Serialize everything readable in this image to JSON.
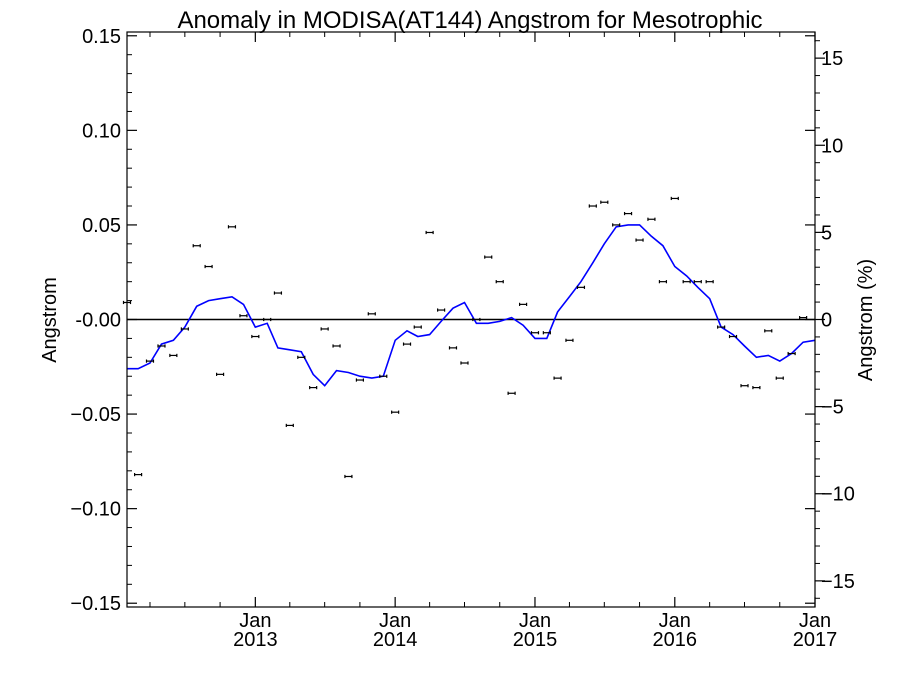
{
  "chart_data": {
    "type": "scatter",
    "title": "Anomaly in MODISA(AT144) Angstrom for Mesotrophic",
    "ylabel": "Angstrom",
    "y2label": "Angstrom (%)",
    "xlim": [
      "2012-02-01",
      "2017-01-01"
    ],
    "ylim": [
      -0.152,
      0.152
    ],
    "y2lim": [
      -16.5,
      16.5
    ],
    "yticks": [
      -0.15,
      -0.1,
      -0.05,
      0.0,
      0.05,
      0.1,
      0.15
    ],
    "ytick_labels": [
      "−0.15",
      "−0.10",
      "−0.05",
      "-0.00",
      "0.05",
      "0.10",
      "0.15"
    ],
    "y2ticks": [
      -15,
      -10,
      -5,
      0,
      5,
      10,
      15
    ],
    "y2tick_labels": [
      "−15",
      "−10",
      "−5",
      "0",
      "5",
      "10",
      "15"
    ],
    "xticks": [
      {
        "date": "2013-01-01",
        "month": "Jan",
        "year": "2013"
      },
      {
        "date": "2014-01-01",
        "month": "Jan",
        "year": "2014"
      },
      {
        "date": "2015-01-01",
        "month": "Jan",
        "year": "2015"
      },
      {
        "date": "2016-01-01",
        "month": "Jan",
        "year": "2016"
      },
      {
        "date": "2017-01-01",
        "month": "Jan",
        "year": "2017"
      }
    ],
    "zero_line": 0,
    "colors": {
      "points": "#000000",
      "running_mean": "#0000ff",
      "zero_line": "#000000"
    },
    "series": [
      {
        "points": [
          [
            "2012-02-01",
            0.009
          ],
          [
            "2012-03-01",
            -0.082
          ],
          [
            "2012-04-01",
            -0.022
          ],
          [
            "2012-05-01",
            -0.014
          ],
          [
            "2012-06-01",
            -0.019
          ],
          [
            "2012-07-01",
            -0.005
          ],
          [
            "2012-08-01",
            0.039
          ],
          [
            "2012-09-01",
            0.028
          ],
          [
            "2012-10-01",
            -0.029
          ],
          [
            "2012-11-01",
            0.049
          ],
          [
            "2012-12-01",
            0.002
          ],
          [
            "2013-01-01",
            -0.009
          ],
          [
            "2013-02-01",
            -0.0
          ],
          [
            "2013-03-01",
            0.014
          ],
          [
            "2013-04-01",
            -0.056
          ],
          [
            "2013-05-01",
            -0.02
          ],
          [
            "2013-06-01",
            -0.036
          ],
          [
            "2013-07-01",
            -0.005
          ],
          [
            "2013-08-01",
            -0.014
          ],
          [
            "2013-09-01",
            -0.083
          ],
          [
            "2013-10-01",
            -0.032
          ],
          [
            "2013-11-01",
            0.003
          ],
          [
            "2013-12-01",
            -0.03
          ],
          [
            "2014-01-01",
            -0.049
          ],
          [
            "2014-02-01",
            -0.013
          ],
          [
            "2014-03-01",
            -0.004
          ],
          [
            "2014-04-01",
            0.046
          ],
          [
            "2014-05-01",
            0.005
          ],
          [
            "2014-06-01",
            -0.015
          ],
          [
            "2014-07-01",
            -0.023
          ],
          [
            "2014-08-01",
            -0.0
          ],
          [
            "2014-09-01",
            0.033
          ],
          [
            "2014-10-01",
            0.02
          ],
          [
            "2014-11-01",
            -0.039
          ],
          [
            "2014-12-01",
            0.008
          ],
          [
            "2015-01-01",
            -0.007
          ],
          [
            "2015-02-01",
            -0.007
          ],
          [
            "2015-03-01",
            -0.031
          ],
          [
            "2015-04-01",
            -0.011
          ],
          [
            "2015-05-01",
            0.017
          ],
          [
            "2015-06-01",
            0.06
          ],
          [
            "2015-07-01",
            0.062
          ],
          [
            "2015-08-01",
            0.05
          ],
          [
            "2015-09-01",
            0.056
          ],
          [
            "2015-10-01",
            0.042
          ],
          [
            "2015-11-01",
            0.053
          ],
          [
            "2015-12-01",
            0.02
          ],
          [
            "2016-01-01",
            0.064
          ],
          [
            "2016-02-01",
            0.02
          ],
          [
            "2016-03-01",
            0.02
          ],
          [
            "2016-04-01",
            0.02
          ],
          [
            "2016-05-01",
            -0.004
          ],
          [
            "2016-06-01",
            -0.009
          ],
          [
            "2016-07-01",
            -0.035
          ],
          [
            "2016-08-01",
            -0.036
          ],
          [
            "2016-09-01",
            -0.006
          ],
          [
            "2016-10-01",
            -0.031
          ],
          [
            "2016-11-01",
            -0.018
          ],
          [
            "2016-12-01",
            0.001
          ]
        ]
      },
      {
        "style": "line",
        "points": [
          [
            "2012-02-01",
            -0.026
          ],
          [
            "2012-03-01",
            -0.026
          ],
          [
            "2012-04-01",
            -0.023
          ],
          [
            "2012-05-01",
            -0.013
          ],
          [
            "2012-06-01",
            -0.011
          ],
          [
            "2012-07-01",
            -0.004
          ],
          [
            "2012-08-01",
            0.007
          ],
          [
            "2012-09-01",
            0.01
          ],
          [
            "2012-10-01",
            0.011
          ],
          [
            "2012-11-01",
            0.012
          ],
          [
            "2012-12-01",
            0.008
          ],
          [
            "2013-01-01",
            -0.004
          ],
          [
            "2013-02-01",
            -0.002
          ],
          [
            "2013-03-01",
            -0.015
          ],
          [
            "2013-04-01",
            -0.016
          ],
          [
            "2013-05-01",
            -0.017
          ],
          [
            "2013-06-01",
            -0.029
          ],
          [
            "2013-07-01",
            -0.035
          ],
          [
            "2013-08-01",
            -0.027
          ],
          [
            "2013-09-01",
            -0.028
          ],
          [
            "2013-10-01",
            -0.03
          ],
          [
            "2013-11-01",
            -0.031
          ],
          [
            "2013-12-01",
            -0.03
          ],
          [
            "2014-01-01",
            -0.011
          ],
          [
            "2014-02-01",
            -0.006
          ],
          [
            "2014-03-01",
            -0.009
          ],
          [
            "2014-04-01",
            -0.008
          ],
          [
            "2014-05-01",
            -0.001
          ],
          [
            "2014-06-01",
            0.006
          ],
          [
            "2014-07-01",
            0.009
          ],
          [
            "2014-08-01",
            -0.002
          ],
          [
            "2014-09-01",
            -0.002
          ],
          [
            "2014-10-01",
            -0.001
          ],
          [
            "2014-11-01",
            0.001
          ],
          [
            "2014-12-01",
            -0.003
          ],
          [
            "2015-01-01",
            -0.01
          ],
          [
            "2015-02-01",
            -0.01
          ],
          [
            "2015-03-01",
            0.004
          ],
          [
            "2015-04-01",
            0.012
          ],
          [
            "2015-05-01",
            0.02
          ],
          [
            "2015-06-01",
            0.03
          ],
          [
            "2015-07-01",
            0.04
          ],
          [
            "2015-08-01",
            0.049
          ],
          [
            "2015-09-01",
            0.05
          ],
          [
            "2015-10-01",
            0.05
          ],
          [
            "2015-11-01",
            0.044
          ],
          [
            "2015-12-01",
            0.039
          ],
          [
            "2016-01-01",
            0.028
          ],
          [
            "2016-02-01",
            0.023
          ],
          [
            "2016-03-01",
            0.017
          ],
          [
            "2016-04-01",
            0.011
          ],
          [
            "2016-05-01",
            -0.004
          ],
          [
            "2016-06-01",
            -0.008
          ],
          [
            "2016-07-01",
            -0.014
          ],
          [
            "2016-08-01",
            -0.02
          ],
          [
            "2016-09-01",
            -0.019
          ],
          [
            "2016-10-01",
            -0.022
          ],
          [
            "2016-11-01",
            -0.018
          ],
          [
            "2016-12-01",
            -0.012
          ],
          [
            "2017-01-01",
            -0.011
          ]
        ]
      }
    ]
  }
}
